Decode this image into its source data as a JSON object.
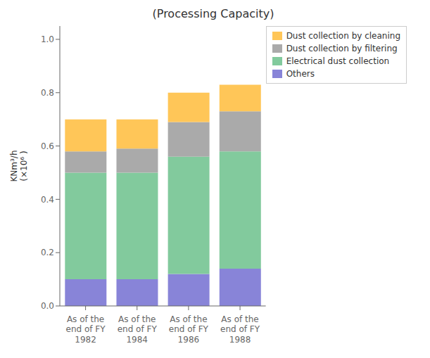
{
  "chart_data": {
    "type": "bar",
    "title": "(Processing Capacity)",
    "y_label": "KNm³/h\n(×10⁶ )",
    "categories": [
      "As of the\nend of FY\n1982",
      "As of the\nend of FY\n1984",
      "As of the\nend of FY\n1986",
      "As of the\nend of FY\n1988"
    ],
    "series": [
      {
        "name": "Others",
        "color": "#8884d8",
        "values": [
          0.1,
          0.1,
          0.12,
          0.14
        ]
      },
      {
        "name": "Electrical dust collection",
        "color": "#82ca9d",
        "values": [
          0.4,
          0.4,
          0.44,
          0.44
        ]
      },
      {
        "name": "Dust collection by filtering",
        "color": "#aaaaaa",
        "values": [
          0.08,
          0.09,
          0.13,
          0.15
        ]
      },
      {
        "name": "Dust collection by cleaning",
        "color": "#ffc658",
        "values": [
          0.12,
          0.11,
          0.11,
          0.1
        ]
      }
    ],
    "stacked": true,
    "ylim": [
      0.0,
      1.05
    ],
    "yticks": [
      {
        "value": 0,
        "label": "0.0"
      },
      0.2,
      0.4,
      0.6,
      0.8,
      {
        "value": 1,
        "label": "1.0"
      }
    ],
    "grid": false,
    "legend": "upper right"
  }
}
